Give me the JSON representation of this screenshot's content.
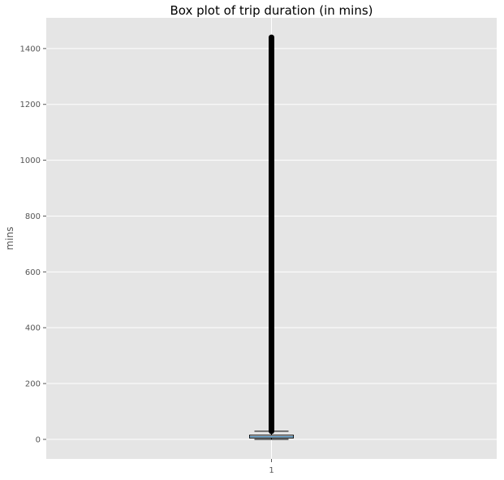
{
  "chart_data": {
    "type": "box",
    "title": "Box plot of trip duration (in mins)",
    "xlabel": "",
    "ylabel": "mins",
    "categories": [
      "1"
    ],
    "ylim": [
      -70,
      1510
    ],
    "yticks": [
      0,
      200,
      400,
      600,
      800,
      1000,
      1200,
      1400
    ],
    "grid": true,
    "style": {
      "background": "#e5e5e5",
      "grid_color": "#ffffff",
      "box_color": "#000000",
      "median_color": "#1f77b4"
    },
    "boxes": [
      {
        "category": "1",
        "whisker_low": 0,
        "q1": 5,
        "median": 9,
        "q3": 15,
        "whisker_high": 29,
        "outliers_range": [
          29,
          1440
        ]
      }
    ]
  }
}
